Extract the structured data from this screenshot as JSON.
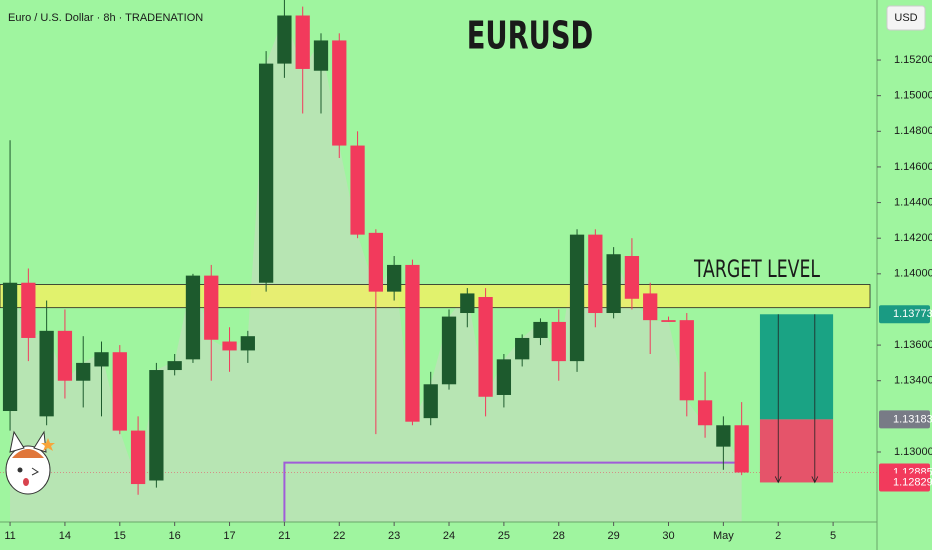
{
  "chart_data": {
    "type": "candlestick",
    "header": "Euro / U.S. Dollar · 8h · TRADENATION",
    "title": "EURUSD",
    "currency": "USD",
    "annotations": [
      "TARGET LEVEL"
    ],
    "colors": {
      "up": "#1d5a2d",
      "down": "#f23a5c",
      "background": "#9ff59f",
      "area": "#b7e5b3",
      "zone": "#f7f05c"
    },
    "series": {
      "open": [
        1.1323,
        1.1395,
        1.132,
        1.1368,
        1.134,
        1.1348,
        1.1356,
        1.1312,
        1.1284,
        1.1346,
        1.1352,
        1.1399,
        1.1362,
        1.1357,
        1.1395,
        1.1518,
        1.1545,
        1.1514,
        1.1531,
        1.1472,
        1.1423,
        1.139,
        1.1405,
        1.1319,
        1.1338,
        1.1378,
        1.1387,
        1.1332,
        1.1352,
        1.1364,
        1.1373,
        1.1351,
        1.1422,
        1.1378,
        1.141,
        1.1389,
        1.1374,
        1.1374,
        1.1329,
        1.1303,
        1.1315
      ],
      "high": [
        1.1475,
        1.1403,
        1.1385,
        1.138,
        1.1365,
        1.1362,
        1.136,
        1.132,
        1.135,
        1.1355,
        1.14,
        1.1405,
        1.137,
        1.1368,
        1.1525,
        1.1554,
        1.155,
        1.1535,
        1.1535,
        1.148,
        1.1425,
        1.141,
        1.1408,
        1.1345,
        1.138,
        1.1392,
        1.1392,
        1.1355,
        1.1366,
        1.1375,
        1.138,
        1.1425,
        1.1425,
        1.1415,
        1.142,
        1.1395,
        1.1376,
        1.1378,
        1.1345,
        1.132,
        1.1328
      ],
      "low": [
        1.1312,
        1.1351,
        1.1315,
        1.133,
        1.1325,
        1.132,
        1.131,
        1.1276,
        1.128,
        1.1343,
        1.135,
        1.134,
        1.1345,
        1.135,
        1.139,
        1.151,
        1.149,
        1.149,
        1.1465,
        1.142,
        1.131,
        1.1385,
        1.1315,
        1.1315,
        1.1335,
        1.137,
        1.132,
        1.1325,
        1.1348,
        1.136,
        1.134,
        1.1345,
        1.137,
        1.1375,
        1.138,
        1.1355,
        1.1373,
        1.132,
        1.1308,
        1.129,
        1.1287
      ],
      "close": [
        1.1395,
        1.1364,
        1.1368,
        1.134,
        1.135,
        1.1356,
        1.1312,
        1.1282,
        1.1346,
        1.1351,
        1.1399,
        1.1363,
        1.1357,
        1.1365,
        1.1518,
        1.1545,
        1.1515,
        1.1531,
        1.1472,
        1.1422,
        1.139,
        1.1405,
        1.1317,
        1.1338,
        1.1376,
        1.1389,
        1.1331,
        1.1352,
        1.1364,
        1.1373,
        1.1351,
        1.1422,
        1.1378,
        1.1411,
        1.1386,
        1.1374,
        1.1373,
        1.1329,
        1.1315,
        1.1315,
        1.12885
      ]
    },
    "target_zone": [
      1.1381,
      1.1394
    ],
    "indicator_line": {
      "value": 1.1294,
      "start": 15,
      "color": "#a05cd8"
    },
    "position": {
      "target": 1.13773,
      "entry": 1.13183,
      "stop": 1.12829,
      "start": 41,
      "end": 45,
      "profit_color": "#1aa384",
      "loss_color": "#e5546a"
    },
    "price_labels": [
      {
        "value": 1.13773,
        "color": "#1a9b83"
      },
      {
        "value": 1.13183,
        "color": "#787b86"
      },
      {
        "value": 1.12885,
        "color": "#f23a5c"
      },
      {
        "value": 1.12829,
        "color": "#f23a5c"
      }
    ],
    "xlim": [
      -0.55,
      47.4
    ],
    "ylim": [
      1.12607,
      1.15537
    ],
    "xticks": [
      {
        "value": 0,
        "label": "11"
      },
      {
        "value": 3,
        "label": "14"
      },
      {
        "value": 6,
        "label": "15"
      },
      {
        "value": 9,
        "label": "16"
      },
      {
        "value": 12,
        "label": "17"
      },
      {
        "value": 15,
        "label": "21"
      },
      {
        "value": 18,
        "label": "22"
      },
      {
        "value": 21,
        "label": "23"
      },
      {
        "value": 24,
        "label": "24"
      },
      {
        "value": 27,
        "label": "25"
      },
      {
        "value": 30,
        "label": "28"
      },
      {
        "value": 33,
        "label": "29"
      },
      {
        "value": 36,
        "label": "30"
      },
      {
        "value": 39,
        "label": "May"
      },
      {
        "value": 42,
        "label": "2"
      },
      {
        "value": 45,
        "label": "5"
      }
    ],
    "yticks": [
      {
        "value": 1.152,
        "label": "1.15200"
      },
      {
        "value": 1.15,
        "label": "1.15000"
      },
      {
        "value": 1.148,
        "label": "1.14800"
      },
      {
        "value": 1.146,
        "label": "1.14600"
      },
      {
        "value": 1.144,
        "label": "1.14400"
      },
      {
        "value": 1.142,
        "label": "1.14200"
      },
      {
        "value": 1.14,
        "label": "1.14000"
      },
      {
        "value": 1.136,
        "label": "1.13600"
      },
      {
        "value": 1.134,
        "label": "1.13400"
      },
      {
        "value": 1.13,
        "label": "1.13000"
      }
    ]
  }
}
